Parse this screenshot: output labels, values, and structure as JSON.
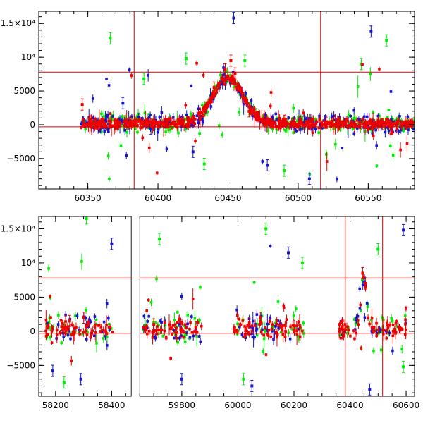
{
  "colors": {
    "green": "#00ee00",
    "blue": "#1515cc",
    "red": "#ee0000",
    "ref_line": "#dd0000",
    "axis": "#000000"
  },
  "chart_data": [
    {
      "type": "scatter",
      "title": "",
      "xlabel": "",
      "ylabel": "",
      "xlim": [
        60315,
        60583
      ],
      "ylim": [
        -9500,
        16800
      ],
      "x_ticks": [
        60350,
        60400,
        60450,
        60500,
        60550
      ],
      "x_tick_labels": [
        "60350",
        "60400",
        "60450",
        "60500",
        "60550"
      ],
      "y_ticks": [
        -5000,
        0,
        5000,
        10000,
        15000
      ],
      "y_tick_labels": [
        "−5000",
        "0",
        "5000",
        "10⁴",
        "1.5×10⁴"
      ],
      "reference_lines": {
        "horizontal": [
          7800,
          -300
        ],
        "vertical": [
          60383,
          60516
        ]
      },
      "segments": [
        [
          60345,
          60583
        ]
      ],
      "series_colors": [
        "green",
        "blue",
        "red"
      ],
      "series": [
        {
          "color": "red",
          "profile": "flare",
          "points": [
            {
              "x": 60346,
              "y": 3000
            },
            {
              "x": 60380,
              "y": 300
            },
            {
              "x": 60410,
              "y": 200
            },
            {
              "x": 60430,
              "y": 800
            },
            {
              "x": 60440,
              "y": 5500
            },
            {
              "x": 60448,
              "y": 8200
            },
            {
              "x": 60452,
              "y": 9500
            },
            {
              "x": 60455,
              "y": 7600
            },
            {
              "x": 60465,
              "y": 2000
            },
            {
              "x": 60490,
              "y": 600
            },
            {
              "x": 60520,
              "y": 300
            },
            {
              "x": 60560,
              "y": 100
            }
          ]
        },
        {
          "color": "blue",
          "profile": "flare",
          "points": [
            {
              "x": 60375,
              "y": 3200
            },
            {
              "x": 60395,
              "y": -600
            },
            {
              "x": 60425,
              "y": -4000
            },
            {
              "x": 60448,
              "y": 6000
            },
            {
              "x": 60454,
              "y": 15800
            },
            {
              "x": 60478,
              "y": -6000
            },
            {
              "x": 60508,
              "y": -8000
            },
            {
              "x": 60552,
              "y": 13800
            }
          ]
        },
        {
          "color": "green",
          "profile": "flare",
          "points": [
            {
              "x": 60366,
              "y": 12800
            },
            {
              "x": 60390,
              "y": 6800
            },
            {
              "x": 60420,
              "y": 9800
            },
            {
              "x": 60433,
              "y": -5800
            },
            {
              "x": 60462,
              "y": 9500
            },
            {
              "x": 60490,
              "y": -6800
            },
            {
              "x": 60545,
              "y": 9000
            },
            {
              "x": 60563,
              "y": 12500
            }
          ]
        }
      ]
    },
    {
      "type": "scatter",
      "title": "",
      "xlabel": "",
      "ylabel": "",
      "xlim": [
        58140,
        60630
      ],
      "ylim": [
        -9500,
        16800
      ],
      "x_ticks": [
        58200,
        58400,
        59800,
        60000,
        60200,
        60400,
        60600
      ],
      "x_tick_labels": [
        "58200",
        "58400",
        "59800",
        "60000",
        "60200",
        "60400",
        "60600"
      ],
      "y_ticks": [
        -5000,
        0,
        5000,
        10000,
        15000
      ],
      "y_tick_labels": [
        "−5000",
        "0",
        "5000",
        "10⁴",
        "1.5×10⁴"
      ],
      "axis_break": {
        "after_x": 58470,
        "resume_x": 59650
      },
      "reference_lines": {
        "horizontal": [
          7800,
          -300
        ],
        "vertical": [
          60383,
          60516
        ]
      },
      "segments": [
        [
          58165,
          58405
        ],
        [
          59660,
          59870
        ],
        [
          59985,
          60235
        ],
        [
          60360,
          60600
        ]
      ],
      "series_colors": [
        "green",
        "blue",
        "red"
      ],
      "series": [
        {
          "color": "red",
          "profile": "scatter",
          "points": [
            {
              "x": 58250,
              "y": 1500
            },
            {
              "x": 58300,
              "y": 2000
            },
            {
              "x": 59700,
              "y": 1000
            },
            {
              "x": 59850,
              "y": 600
            },
            {
              "x": 60080,
              "y": 2000
            },
            {
              "x": 60200,
              "y": 800
            },
            {
              "x": 60445,
              "y": 8500
            },
            {
              "x": 60455,
              "y": 7000
            }
          ]
        },
        {
          "color": "blue",
          "profile": "scatter",
          "points": [
            {
              "x": 58190,
              "y": -5800
            },
            {
              "x": 58290,
              "y": -7000
            },
            {
              "x": 58400,
              "y": 12800
            },
            {
              "x": 59800,
              "y": -7000
            },
            {
              "x": 60050,
              "y": -8000
            },
            {
              "x": 60180,
              "y": 11500
            },
            {
              "x": 60470,
              "y": -8500
            },
            {
              "x": 60590,
              "y": 14800
            }
          ]
        },
        {
          "color": "green",
          "profile": "scatter",
          "points": [
            {
              "x": 58230,
              "y": -7500
            },
            {
              "x": 58310,
              "y": 16500
            },
            {
              "x": 59720,
              "y": 13500
            },
            {
              "x": 60020,
              "y": -7000
            },
            {
              "x": 60100,
              "y": 15000
            },
            {
              "x": 60230,
              "y": 10000
            },
            {
              "x": 60500,
              "y": 12000
            },
            {
              "x": 60590,
              "y": -5200
            }
          ]
        }
      ]
    }
  ]
}
